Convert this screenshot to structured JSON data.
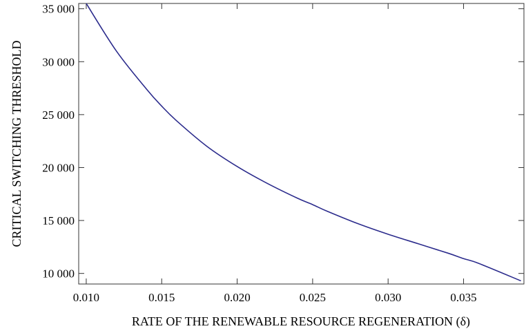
{
  "chart_data": {
    "type": "line",
    "title": "",
    "xlabel": "RATE OF THE RENEWABLE RESOURCE REGENERATION (δ)",
    "ylabel": "CRITICAL SWITCHING THRESHOLD",
    "xlim": [
      0.0095,
      0.039
    ],
    "ylim": [
      9000,
      35500
    ],
    "xticks": [
      0.01,
      0.015,
      0.02,
      0.025,
      0.03,
      0.035
    ],
    "xtick_labels": [
      "0.010",
      "0.015",
      "0.020",
      "0.025",
      "0.030",
      "0.035"
    ],
    "yticks": [
      10000,
      15000,
      20000,
      25000,
      30000,
      35000
    ],
    "ytick_labels": [
      "10 000",
      "15 000",
      "20 000",
      "25 000",
      "30 000",
      "35 000"
    ],
    "grid": false,
    "series": [
      {
        "color": "#2b2b8c",
        "x": [
          0.01,
          0.012,
          0.014,
          0.015,
          0.016,
          0.018,
          0.02,
          0.022,
          0.024,
          0.025,
          0.026,
          0.028,
          0.03,
          0.032,
          0.034,
          0.035,
          0.036,
          0.0388
        ],
        "y": [
          35500,
          31000,
          27400,
          25800,
          24400,
          22000,
          20100,
          18500,
          17100,
          16500,
          15850,
          14700,
          13700,
          12800,
          11900,
          11400,
          10950,
          9300
        ]
      }
    ]
  }
}
